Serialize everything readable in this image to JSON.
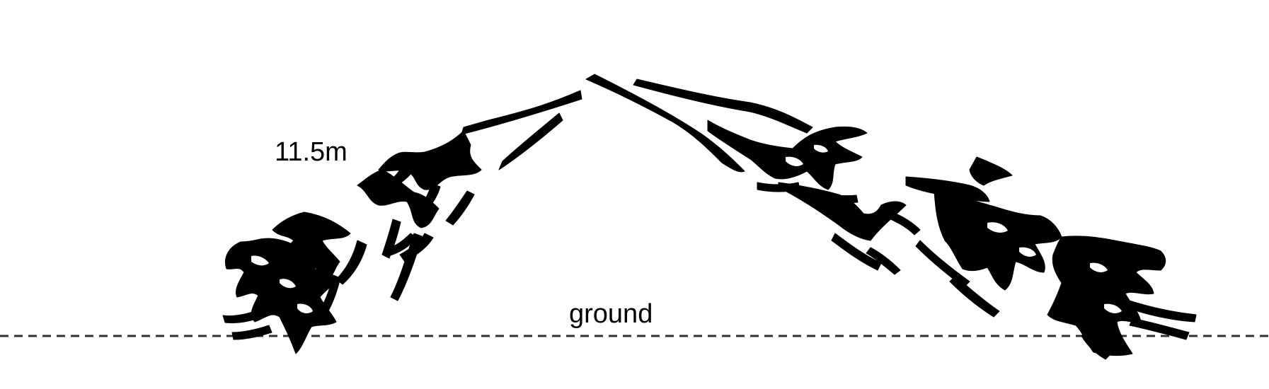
{
  "labels": {
    "height": "11.5m",
    "ground": "ground"
  },
  "colors": {
    "background": "#ffffff",
    "ink": "#000000",
    "ground_line": "#333333"
  }
}
